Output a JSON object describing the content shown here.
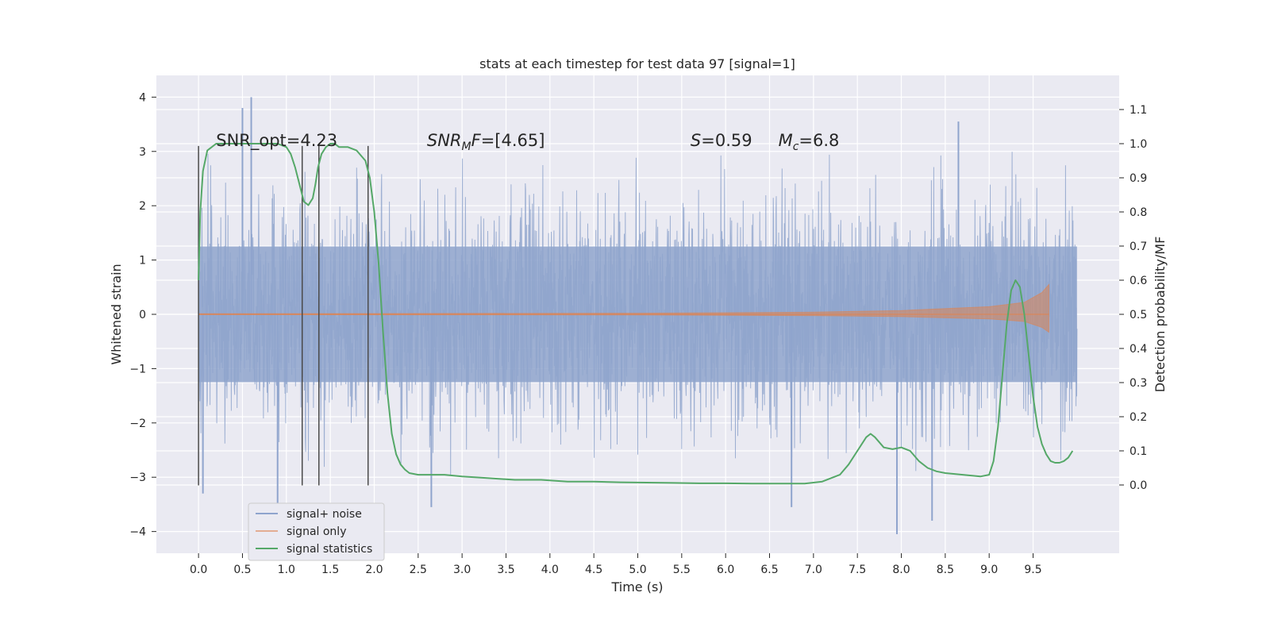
{
  "chart_data": {
    "type": "line",
    "title": "stats at each timestep for test data 97 [signal=1]",
    "xlabel": "Time (s)",
    "ylabel_left": "Whitened strain",
    "ylabel_right": "Detection probability/MF",
    "xlim": [
      -0.48,
      10.48
    ],
    "ylim_left": [
      -4.4,
      4.4
    ],
    "ylim_right": [
      -0.2,
      1.2
    ],
    "x_ticks": [
      "0.0",
      "0.5",
      "1.0",
      "1.5",
      "2.0",
      "2.5",
      "3.0",
      "3.5",
      "4.0",
      "4.5",
      "5.0",
      "5.5",
      "6.0",
      "6.5",
      "7.0",
      "7.5",
      "8.0",
      "8.5",
      "9.0",
      "9.5"
    ],
    "x_tick_values": [
      0.0,
      0.5,
      1.0,
      1.5,
      2.0,
      2.5,
      3.0,
      3.5,
      4.0,
      4.5,
      5.0,
      5.5,
      6.0,
      6.5,
      7.0,
      7.5,
      8.0,
      8.5,
      9.0,
      9.5
    ],
    "y_ticks_left": [
      "−4",
      "−3",
      "−2",
      "−1",
      "0",
      "1",
      "2",
      "3",
      "4"
    ],
    "y_tick_values_left": [
      -4,
      -3,
      -2,
      -1,
      0,
      1,
      2,
      3,
      4
    ],
    "y_ticks_right": [
      "0.0",
      "0.1",
      "0.2",
      "0.3",
      "0.4",
      "0.5",
      "0.6",
      "0.7",
      "0.8",
      "0.9",
      "1.0",
      "1.1"
    ],
    "y_tick_values_right": [
      0.0,
      0.1,
      0.2,
      0.3,
      0.4,
      0.5,
      0.6,
      0.7,
      0.8,
      0.9,
      1.0,
      1.1
    ],
    "grid": true,
    "legend_position": "lower-left",
    "series": [
      {
        "name": "signal+ noise",
        "axis": "left",
        "color": "#8fa4cd",
        "render": "dense noise band",
        "x_range": [
          0.0,
          10.0
        ],
        "typical_extent": [
          -2.7,
          2.7
        ],
        "peaks": [
          {
            "x": 0.05,
            "y": -3.3
          },
          {
            "x": 0.5,
            "y": 3.8
          },
          {
            "x": 0.6,
            "y": 4.0
          },
          {
            "x": 0.9,
            "y": -3.6
          },
          {
            "x": 2.65,
            "y": -3.55
          },
          {
            "x": 6.75,
            "y": -3.55
          },
          {
            "x": 7.95,
            "y": -4.05
          },
          {
            "x": 8.35,
            "y": -3.8
          },
          {
            "x": 8.65,
            "y": 3.55
          }
        ]
      },
      {
        "name": "signal only",
        "axis": "left",
        "color": "#dd8452",
        "render": "chirp envelope",
        "x_range": [
          0.0,
          9.68
        ],
        "envelope": [
          [
            0.0,
            0.01
          ],
          [
            5.0,
            0.02
          ],
          [
            7.0,
            0.04
          ],
          [
            8.0,
            0.07
          ],
          [
            9.0,
            0.14
          ],
          [
            9.4,
            0.22
          ],
          [
            9.6,
            0.4
          ],
          [
            9.68,
            0.55
          ]
        ]
      },
      {
        "name": "signal statistics",
        "axis": "right",
        "color": "#55a868",
        "x": [
          0.0,
          0.02,
          0.05,
          0.1,
          0.15,
          0.2,
          0.3,
          0.4,
          0.5,
          0.6,
          0.7,
          0.8,
          0.9,
          1.0,
          1.05,
          1.1,
          1.15,
          1.2,
          1.25,
          1.3,
          1.33,
          1.36,
          1.4,
          1.45,
          1.5,
          1.55,
          1.6,
          1.7,
          1.8,
          1.9,
          1.95,
          2.0,
          2.05,
          2.1,
          2.15,
          2.2,
          2.25,
          2.3,
          2.35,
          2.4,
          2.5,
          2.6,
          2.8,
          3.0,
          3.3,
          3.6,
          3.9,
          4.2,
          4.5,
          4.8,
          5.1,
          5.4,
          5.7,
          6.0,
          6.3,
          6.6,
          6.9,
          7.1,
          7.3,
          7.4,
          7.5,
          7.6,
          7.65,
          7.7,
          7.8,
          7.9,
          8.0,
          8.1,
          8.2,
          8.3,
          8.4,
          8.5,
          8.7,
          8.9,
          9.0,
          9.05,
          9.1,
          9.15,
          9.2,
          9.25,
          9.3,
          9.35,
          9.4,
          9.45,
          9.5,
          9.55,
          9.6,
          9.65,
          9.7,
          9.75,
          9.8,
          9.85,
          9.9,
          9.95
        ],
        "y": [
          0.6,
          0.8,
          0.92,
          0.98,
          0.99,
          1.0,
          1.0,
          1.0,
          1.0,
          1.0,
          1.0,
          1.0,
          1.0,
          0.99,
          0.97,
          0.93,
          0.88,
          0.83,
          0.82,
          0.84,
          0.88,
          0.93,
          0.97,
          0.99,
          1.0,
          1.0,
          0.99,
          0.99,
          0.98,
          0.95,
          0.9,
          0.8,
          0.65,
          0.45,
          0.27,
          0.15,
          0.09,
          0.06,
          0.045,
          0.035,
          0.03,
          0.03,
          0.03,
          0.025,
          0.02,
          0.015,
          0.015,
          0.01,
          0.01,
          0.008,
          0.007,
          0.006,
          0.005,
          0.005,
          0.004,
          0.004,
          0.004,
          0.01,
          0.03,
          0.06,
          0.1,
          0.14,
          0.15,
          0.14,
          0.11,
          0.105,
          0.11,
          0.1,
          0.07,
          0.05,
          0.04,
          0.035,
          0.03,
          0.025,
          0.03,
          0.07,
          0.17,
          0.32,
          0.47,
          0.57,
          0.6,
          0.58,
          0.5,
          0.38,
          0.26,
          0.17,
          0.12,
          0.09,
          0.07,
          0.065,
          0.065,
          0.07,
          0.08,
          0.1
        ]
      }
    ],
    "markers": {
      "name": "event markers",
      "color": "#4a4a4a",
      "x": [
        0.0,
        1.18,
        1.37,
        1.93
      ],
      "y_range": [
        -3.15,
        3.1
      ]
    },
    "annotations": [
      {
        "text": "SNR_opt=4.23",
        "x": 0.2,
        "y": 3.1
      },
      {
        "text": "SNRₘF=[4.65]",
        "x": 2.6,
        "y": 3.1,
        "parts": {
          "var": "SNR",
          "sub": "M",
          "rest": "F=[4.65]"
        }
      },
      {
        "text": "S=0.59",
        "x": 5.6,
        "y": 3.1,
        "parts": {
          "var": "S",
          "rest": "=0.59"
        }
      },
      {
        "text": "Mc=6.8",
        "x": 6.6,
        "y": 3.1,
        "parts": {
          "var": "M",
          "sub": "c",
          "rest": "=6.8"
        }
      }
    ],
    "colors": {
      "plot_background": "#eaeaf2",
      "grid": "#ffffff",
      "noise": "#8fa4cd",
      "signal": "#dd8452",
      "statistics": "#55a868",
      "markers": "#4a4a4a"
    }
  }
}
